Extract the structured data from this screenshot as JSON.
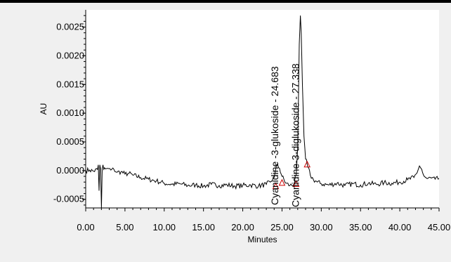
{
  "chart_data": {
    "type": "line",
    "title": "",
    "xlabel": "Minutes",
    "ylabel": "AU",
    "xlim": [
      0,
      45
    ],
    "ylim": [
      -0.00065,
      0.0028
    ],
    "x_ticks": [
      0,
      5,
      10,
      15,
      20,
      25,
      30,
      35,
      40,
      45
    ],
    "x_tick_labels": [
      "0.00",
      "5.00",
      "10.00",
      "15.00",
      "20.00",
      "25.00",
      "30.00",
      "35.00",
      "40.00",
      "45.00"
    ],
    "y_ticks": [
      -0.0005,
      0.0,
      0.0005,
      0.001,
      0.0015,
      0.002,
      0.0025
    ],
    "y_tick_labels": [
      "-0.0005",
      "0.0000",
      "0.0005",
      "0.0010",
      "0.0015",
      "0.0020",
      "0.0025"
    ],
    "grid": false,
    "series": [
      {
        "x": [
          0,
          0.5,
          1.0,
          1.5,
          1.6,
          1.7,
          1.8,
          1.9,
          2.0,
          2.1,
          2.2,
          2.3,
          2.4,
          2.5,
          2.8,
          3.2,
          3.6,
          4.0,
          4.5,
          5.0,
          5.5,
          6.0,
          7.0,
          8.0,
          9.0,
          10.0,
          11.0,
          12.0,
          13.0,
          14.0,
          15.0,
          16.0,
          17.0,
          18.0,
          19.0,
          20.0,
          21.0,
          22.0,
          23.0,
          23.5,
          24.0,
          24.3,
          24.683,
          25.0,
          25.5,
          26.0,
          26.5,
          26.8,
          27.0,
          27.1,
          27.2,
          27.338,
          27.45,
          27.6,
          27.8,
          28.0,
          28.3,
          28.6,
          29.0,
          29.5,
          30.0,
          31.0,
          32.0,
          33.0,
          34.0,
          35.0,
          36.0,
          37.0,
          38.0,
          39.0,
          40.0,
          41.0,
          41.8,
          42.2,
          42.5,
          42.8,
          43.1,
          43.5,
          44.0,
          44.5,
          45.0
        ],
        "y": [
          0.0,
          1e-05,
          -1e-05,
          2e-05,
          0.0001,
          -0.00035,
          0.0001,
          3e-05,
          -0.00065,
          3e-05,
          0.0001,
          2e-05,
          5e-05,
          3e-05,
          4e-05,
          1e-05,
          2e-05,
          -3e-05,
          -2e-05,
          -6e-05,
          -5e-05,
          -8e-05,
          -0.00012,
          -0.00015,
          -0.00018,
          -0.00022,
          -0.00024,
          -0.00023,
          -0.00026,
          -0.00025,
          -0.00027,
          -0.00024,
          -0.00026,
          -0.00025,
          -0.00027,
          -0.00026,
          -0.00025,
          -0.00027,
          -0.00024,
          -0.0002,
          -0.00012,
          0.0001,
          4e-05,
          -0.0001,
          -0.00022,
          -0.00026,
          -0.00024,
          -8e-05,
          0.0004,
          0.0013,
          0.0022,
          0.0027,
          0.0024,
          0.0015,
          0.0006,
          0.0002,
          6e-05,
          -8e-05,
          -0.00016,
          -0.0002,
          -0.00023,
          -0.00025,
          -0.00022,
          -0.00026,
          -0.00023,
          -0.00025,
          -0.00022,
          -0.00024,
          -0.00021,
          -0.00022,
          -0.0002,
          -0.00016,
          -0.00012,
          -4e-05,
          8e-05,
          2e-05,
          -0.0001,
          -0.00014,
          -0.00013,
          -0.00015,
          -0.00014
        ]
      }
    ],
    "peaks": [
      {
        "label": "Cyanidine -3-glukoside - 24.683",
        "x": 24.683,
        "y": 4e-05
      },
      {
        "label": "Cyanidine-3-diglukoside - 27.338",
        "x": 27.338,
        "y": 0.0027
      }
    ],
    "baseline_markers": [
      {
        "x": 24.2,
        "y": -0.00028
      },
      {
        "x": 25.0,
        "y": -0.00022
      },
      {
        "x": 26.8,
        "y": -0.00024
      },
      {
        "x": 28.2,
        "y": 0.0001
      }
    ],
    "colors": {
      "background": "#f0f0f0",
      "plot_area": "#ffffff",
      "trace": "#000000",
      "marker": "#cc0000",
      "text": "#000000"
    }
  }
}
